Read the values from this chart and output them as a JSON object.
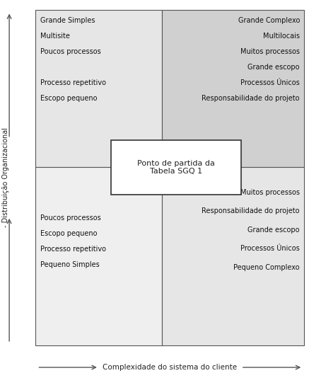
{
  "title_x": "Complexidade do sistema do cliente",
  "title_y": "- Distribuição Organizacional",
  "quadrant_top_left_lines": [
    "Grande Simples",
    "Multisite",
    "Poucos processos",
    "",
    "Processo repetitivo",
    "Escopo pequeno"
  ],
  "quadrant_top_right_lines": [
    "Grande Complexo",
    "Multilocais",
    "Muitos processos",
    "Grande escopo",
    "Processos Únicos",
    "Responsabilidade do projeto"
  ],
  "quadrant_bottom_left_lines": [
    "Poucos processos",
    "Escopo pequeno",
    "Processo repetitivo",
    "Pequeno Simples"
  ],
  "quadrant_bottom_right_lines": [
    "Muitos processos",
    "Responsabilidade do projeto",
    "Grande escopo",
    "Processos Únicos",
    "Pequeno Complexo"
  ],
  "center_box_text": "Ponto de partida da\nTabela SGQ 1",
  "color_top_left": "#e6e6e6",
  "color_top_right": "#d0d0d0",
  "color_bottom_left": "#efefef",
  "color_bottom_right": "#e6e6e6",
  "color_center_box": "#ffffff",
  "fig_width": 4.37,
  "fig_height": 5.51,
  "dpi": 100
}
